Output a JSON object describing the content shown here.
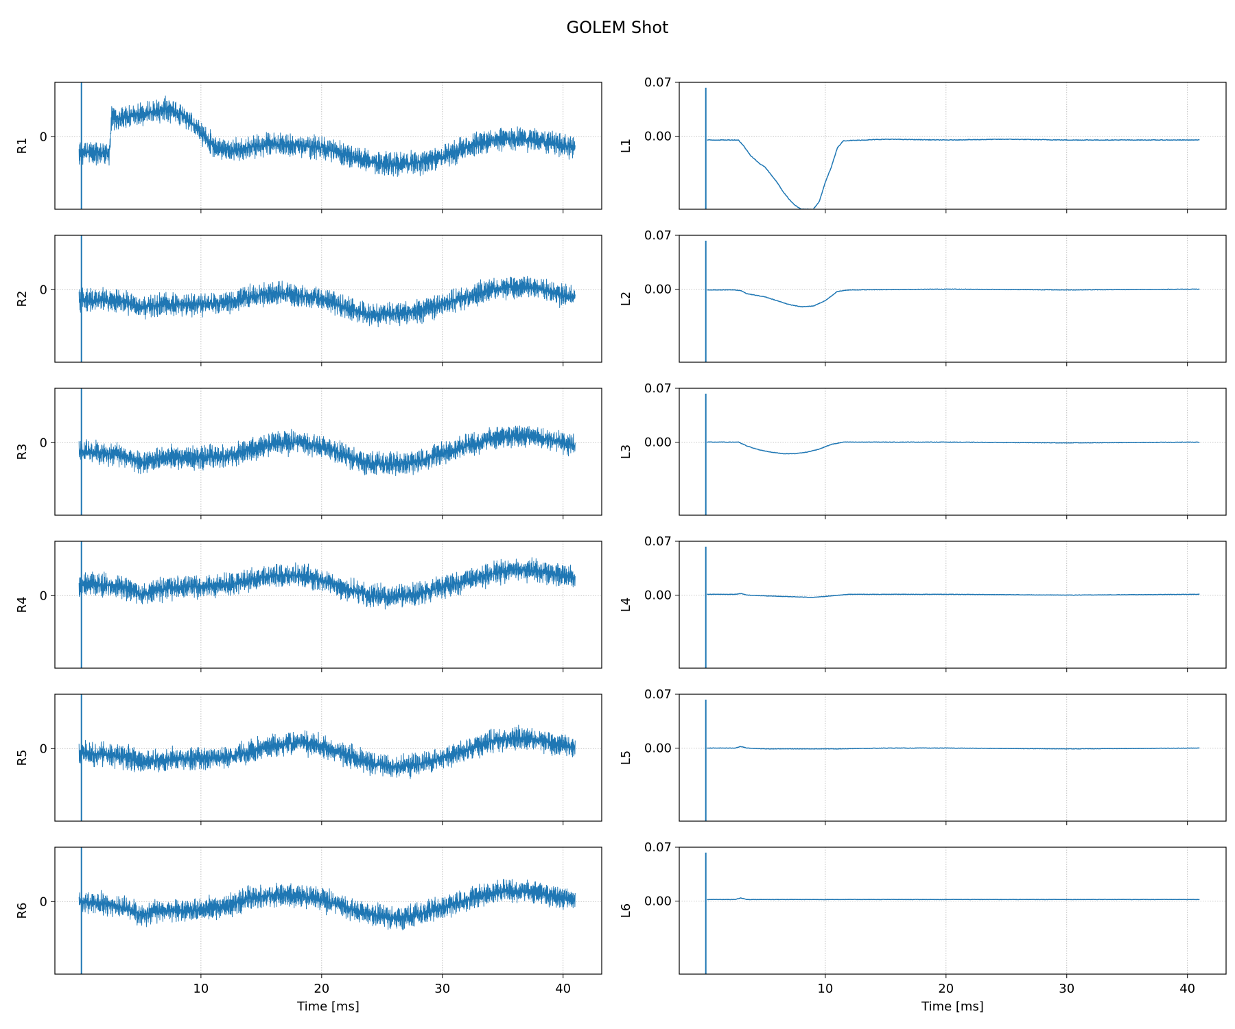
{
  "title": "GOLEM Shot",
  "chart_data": {
    "type": "line",
    "title": "GOLEM Shot",
    "layout": "6 rows x 2 columns",
    "color": "#1f77b4",
    "grid": true,
    "grid_style": "dotted",
    "x_ticks": [
      10,
      20,
      30,
      40
    ],
    "xlim": [
      -2.1,
      43.2
    ],
    "xlabel": "Time [ms]",
    "left_panels": [
      {
        "ylabel": "R1",
        "y_ticks": [
          "0"
        ],
        "ylim": [
          -1.0,
          0.75
        ],
        "baseline": -0.22,
        "spike": [
          0.1,
          -1.0,
          0.75
        ],
        "trend": [
          [
            -0.1,
            -0.22
          ],
          [
            2.4,
            -0.22
          ],
          [
            2.6,
            0.25
          ],
          [
            3.5,
            0.25
          ],
          [
            5.0,
            0.32
          ],
          [
            7.0,
            0.38
          ],
          [
            8.5,
            0.3
          ],
          [
            10.0,
            0.05
          ],
          [
            11.0,
            -0.12
          ],
          [
            12.5,
            -0.2
          ],
          [
            14.0,
            -0.15
          ],
          [
            16.0,
            -0.1
          ],
          [
            18.0,
            -0.12
          ],
          [
            20.0,
            -0.15
          ],
          [
            22.0,
            -0.25
          ],
          [
            24.0,
            -0.35
          ],
          [
            26.0,
            -0.38
          ],
          [
            28.0,
            -0.36
          ],
          [
            30.0,
            -0.28
          ],
          [
            32.0,
            -0.15
          ],
          [
            34.0,
            -0.05
          ],
          [
            36.0,
            -0.03
          ],
          [
            38.0,
            -0.05
          ],
          [
            40.0,
            -0.12
          ],
          [
            41.0,
            -0.15
          ]
        ],
        "noise": 0.12
      },
      {
        "ylabel": "R2",
        "y_ticks": [
          "0"
        ],
        "ylim": [
          -1.0,
          0.75
        ],
        "baseline": -0.15,
        "spike": [
          0.1,
          -1.0,
          0.75
        ],
        "trend": [
          [
            -0.1,
            -0.15
          ],
          [
            2.0,
            -0.15
          ],
          [
            4.0,
            -0.18
          ],
          [
            5.0,
            -0.25
          ],
          [
            7.0,
            -0.2
          ],
          [
            9.0,
            -0.2
          ],
          [
            12.0,
            -0.18
          ],
          [
            14.0,
            -0.1
          ],
          [
            16.0,
            -0.05
          ],
          [
            18.0,
            -0.08
          ],
          [
            20.0,
            -0.12
          ],
          [
            22.0,
            -0.25
          ],
          [
            24.0,
            -0.35
          ],
          [
            26.0,
            -0.33
          ],
          [
            28.0,
            -0.3
          ],
          [
            30.0,
            -0.2
          ],
          [
            32.0,
            -0.1
          ],
          [
            34.0,
            0.0
          ],
          [
            36.0,
            0.05
          ],
          [
            38.0,
            0.02
          ],
          [
            40.0,
            -0.08
          ],
          [
            41.0,
            -0.1
          ]
        ],
        "noise": 0.12
      },
      {
        "ylabel": "R3",
        "y_ticks": [
          "0"
        ],
        "ylim": [
          -1.0,
          0.75
        ],
        "baseline": -0.15,
        "spike": [
          0.1,
          -1.0,
          0.75
        ],
        "trend": [
          [
            -0.1,
            -0.12
          ],
          [
            2.0,
            -0.14
          ],
          [
            4.0,
            -0.2
          ],
          [
            5.0,
            -0.28
          ],
          [
            7.0,
            -0.2
          ],
          [
            9.0,
            -0.22
          ],
          [
            12.0,
            -0.18
          ],
          [
            14.0,
            -0.1
          ],
          [
            16.0,
            -0.02
          ],
          [
            18.0,
            0.0
          ],
          [
            20.0,
            -0.05
          ],
          [
            22.0,
            -0.18
          ],
          [
            24.0,
            -0.28
          ],
          [
            26.0,
            -0.3
          ],
          [
            28.0,
            -0.26
          ],
          [
            30.0,
            -0.15
          ],
          [
            32.0,
            -0.05
          ],
          [
            34.0,
            0.05
          ],
          [
            36.0,
            0.1
          ],
          [
            38.0,
            0.08
          ],
          [
            40.0,
            0.0
          ],
          [
            41.0,
            -0.05
          ]
        ],
        "noise": 0.12
      },
      {
        "ylabel": "R4",
        "y_ticks": [
          "0"
        ],
        "ylim": [
          -1.0,
          0.75
        ],
        "baseline": 0.15,
        "spike": [
          0.1,
          -1.0,
          0.75
        ],
        "trend": [
          [
            -0.1,
            0.15
          ],
          [
            2.0,
            0.15
          ],
          [
            4.0,
            0.1
          ],
          [
            5.0,
            0.02
          ],
          [
            7.0,
            0.1
          ],
          [
            9.0,
            0.12
          ],
          [
            12.0,
            0.14
          ],
          [
            14.0,
            0.22
          ],
          [
            16.0,
            0.28
          ],
          [
            18.0,
            0.28
          ],
          [
            20.0,
            0.22
          ],
          [
            22.0,
            0.1
          ],
          [
            24.0,
            0.0
          ],
          [
            26.0,
            -0.02
          ],
          [
            28.0,
            0.02
          ],
          [
            30.0,
            0.12
          ],
          [
            32.0,
            0.2
          ],
          [
            34.0,
            0.3
          ],
          [
            36.0,
            0.36
          ],
          [
            38.0,
            0.34
          ],
          [
            40.0,
            0.28
          ],
          [
            41.0,
            0.24
          ]
        ],
        "noise": 0.12
      },
      {
        "ylabel": "R5",
        "y_ticks": [
          "0"
        ],
        "ylim": [
          -1.0,
          0.75
        ],
        "baseline": -0.1,
        "spike": [
          0.1,
          -1.0,
          0.75
        ],
        "trend": [
          [
            -0.1,
            -0.05
          ],
          [
            2.0,
            -0.08
          ],
          [
            4.0,
            -0.12
          ],
          [
            5.0,
            -0.2
          ],
          [
            7.0,
            -0.15
          ],
          [
            9.0,
            -0.14
          ],
          [
            12.0,
            -0.12
          ],
          [
            14.0,
            -0.05
          ],
          [
            16.0,
            0.05
          ],
          [
            18.0,
            0.08
          ],
          [
            20.0,
            0.05
          ],
          [
            22.0,
            -0.08
          ],
          [
            24.0,
            -0.2
          ],
          [
            26.0,
            -0.25
          ],
          [
            28.0,
            -0.22
          ],
          [
            30.0,
            -0.12
          ],
          [
            32.0,
            -0.02
          ],
          [
            34.0,
            0.1
          ],
          [
            36.0,
            0.15
          ],
          [
            38.0,
            0.12
          ],
          [
            40.0,
            0.05
          ],
          [
            41.0,
            0.0
          ]
        ],
        "noise": 0.12
      },
      {
        "ylabel": "R6",
        "y_ticks": [
          "0"
        ],
        "ylim": [
          -1.0,
          0.75
        ],
        "baseline": -0.05,
        "spike": [
          0.1,
          -1.0,
          0.75
        ],
        "trend": [
          [
            -0.1,
            0.0
          ],
          [
            2.0,
            -0.03
          ],
          [
            4.0,
            -0.1
          ],
          [
            5.0,
            -0.18
          ],
          [
            7.0,
            -0.12
          ],
          [
            9.0,
            -0.12
          ],
          [
            12.0,
            -0.08
          ],
          [
            14.0,
            0.05
          ],
          [
            16.0,
            0.1
          ],
          [
            18.0,
            0.08
          ],
          [
            20.0,
            0.02
          ],
          [
            22.0,
            -0.08
          ],
          [
            24.0,
            -0.18
          ],
          [
            26.0,
            -0.22
          ],
          [
            28.0,
            -0.18
          ],
          [
            30.0,
            -0.08
          ],
          [
            32.0,
            0.02
          ],
          [
            34.0,
            0.12
          ],
          [
            36.0,
            0.15
          ],
          [
            38.0,
            0.12
          ],
          [
            40.0,
            0.05
          ],
          [
            41.0,
            0.02
          ]
        ],
        "noise": 0.12
      }
    ],
    "right_panels": [
      {
        "ylabel": "L1",
        "y_ticks": [
          "0.07",
          "0.00"
        ],
        "ylim": [
          -0.095,
          0.07
        ],
        "spike": [
          0.1,
          -0.095,
          0.063
        ],
        "trend": [
          [
            0.2,
            -0.005
          ],
          [
            2.8,
            -0.005
          ],
          [
            3.2,
            -0.012
          ],
          [
            3.8,
            -0.025
          ],
          [
            4.5,
            -0.035
          ],
          [
            5.0,
            -0.04
          ],
          [
            5.5,
            -0.05
          ],
          [
            6.0,
            -0.06
          ],
          [
            6.5,
            -0.072
          ],
          [
            7.0,
            -0.082
          ],
          [
            7.5,
            -0.09
          ],
          [
            8.0,
            -0.095
          ],
          [
            9.0,
            -0.095
          ],
          [
            9.5,
            -0.085
          ],
          [
            10.0,
            -0.06
          ],
          [
            10.5,
            -0.04
          ],
          [
            11.0,
            -0.015
          ],
          [
            11.5,
            -0.006
          ],
          [
            15.0,
            -0.004
          ],
          [
            20.0,
            -0.005
          ],
          [
            25.0,
            -0.004
          ],
          [
            30.0,
            -0.005
          ],
          [
            35.0,
            -0.005
          ],
          [
            41.0,
            -0.005
          ]
        ],
        "noise": 0.0008
      },
      {
        "ylabel": "L2",
        "y_ticks": [
          "0.07",
          "0.00"
        ],
        "ylim": [
          -0.095,
          0.07
        ],
        "spike": [
          0.1,
          -0.095,
          0.063
        ],
        "trend": [
          [
            0.2,
            -0.001
          ],
          [
            2.5,
            -0.001
          ],
          [
            3.0,
            -0.002
          ],
          [
            3.5,
            -0.006
          ],
          [
            5.0,
            -0.01
          ],
          [
            6.0,
            -0.015
          ],
          [
            7.0,
            -0.02
          ],
          [
            8.0,
            -0.023
          ],
          [
            9.0,
            -0.022
          ],
          [
            10.0,
            -0.015
          ],
          [
            11.0,
            -0.003
          ],
          [
            12.0,
            -0.001
          ],
          [
            20.0,
            0.0
          ],
          [
            30.0,
            -0.001
          ],
          [
            41.0,
            0.0
          ]
        ],
        "noise": 0.0006
      },
      {
        "ylabel": "L3",
        "y_ticks": [
          "0.07",
          "0.00"
        ],
        "ylim": [
          -0.095,
          0.07
        ],
        "spike": [
          0.1,
          -0.095,
          0.063
        ],
        "trend": [
          [
            0.2,
            0.0
          ],
          [
            2.8,
            0.0
          ],
          [
            3.5,
            -0.005
          ],
          [
            4.5,
            -0.01
          ],
          [
            5.5,
            -0.013
          ],
          [
            6.5,
            -0.015
          ],
          [
            7.5,
            -0.015
          ],
          [
            8.5,
            -0.013
          ],
          [
            9.5,
            -0.009
          ],
          [
            10.5,
            -0.003
          ],
          [
            11.5,
            0.0
          ],
          [
            20.0,
            0.0
          ],
          [
            30.0,
            -0.001
          ],
          [
            41.0,
            0.0
          ]
        ],
        "noise": 0.0006
      },
      {
        "ylabel": "L4",
        "y_ticks": [
          "0.07",
          "0.00"
        ],
        "ylim": [
          -0.095,
          0.07
        ],
        "spike": [
          0.1,
          -0.095,
          0.063
        ],
        "trend": [
          [
            0.2,
            0.001
          ],
          [
            2.5,
            0.001
          ],
          [
            3.0,
            0.002
          ],
          [
            3.5,
            0.0
          ],
          [
            5.0,
            -0.001
          ],
          [
            7.0,
            -0.002
          ],
          [
            9.0,
            -0.003
          ],
          [
            10.5,
            -0.001
          ],
          [
            12.0,
            0.001
          ],
          [
            20.0,
            0.001
          ],
          [
            30.0,
            0.0
          ],
          [
            41.0,
            0.001
          ]
        ],
        "noise": 0.0005
      },
      {
        "ylabel": "L5",
        "y_ticks": [
          "0.07",
          "0.00"
        ],
        "ylim": [
          -0.095,
          0.07
        ],
        "spike": [
          0.1,
          -0.095,
          0.063
        ],
        "trend": [
          [
            0.2,
            0.0
          ],
          [
            2.5,
            0.0
          ],
          [
            3.0,
            0.002
          ],
          [
            3.5,
            0.0
          ],
          [
            5.0,
            -0.001
          ],
          [
            8.0,
            -0.001
          ],
          [
            11.0,
            -0.001
          ],
          [
            15.0,
            0.0
          ],
          [
            20.0,
            0.0
          ],
          [
            30.0,
            -0.001
          ],
          [
            41.0,
            0.0
          ]
        ],
        "noise": 0.0005
      },
      {
        "ylabel": "L6",
        "y_ticks": [
          "0.07",
          "0.00"
        ],
        "ylim": [
          -0.095,
          0.07
        ],
        "spike": [
          0.1,
          -0.095,
          0.063
        ],
        "trend": [
          [
            0.2,
            0.002
          ],
          [
            2.5,
            0.002
          ],
          [
            3.0,
            0.004
          ],
          [
            3.5,
            0.002
          ],
          [
            10.0,
            0.002
          ],
          [
            20.0,
            0.002
          ],
          [
            30.0,
            0.002
          ],
          [
            41.0,
            0.002
          ]
        ],
        "noise": 0.0005
      }
    ]
  }
}
